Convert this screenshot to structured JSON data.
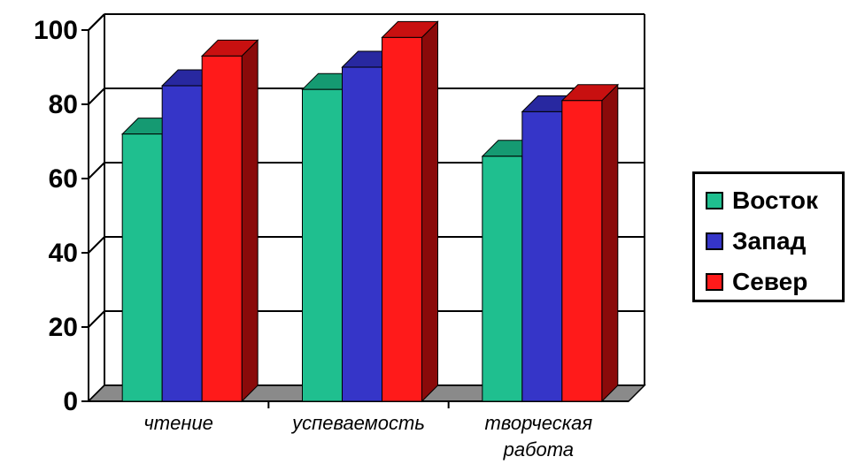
{
  "chart_data": {
    "type": "bar",
    "categories": [
      "чтение",
      "успеваемость",
      "творческая работа"
    ],
    "category_lines": [
      [
        "чтение"
      ],
      [
        "успеваемость"
      ],
      [
        "творческая",
        "работа"
      ]
    ],
    "series": [
      {
        "name": "Восток",
        "values": [
          72,
          84,
          66
        ],
        "color": "#1fbf8f",
        "side": "#0f6b50",
        "top": "#159a72"
      },
      {
        "name": "Запад",
        "values": [
          85,
          90,
          78
        ],
        "color": "#3535c8",
        "side": "#141470",
        "top": "#2828a0"
      },
      {
        "name": "Север",
        "values": [
          93,
          98,
          81
        ],
        "color": "#ff1a1a",
        "side": "#8a0a0a",
        "top": "#c81010"
      }
    ],
    "ylim": [
      0,
      100
    ],
    "yticks": [
      "0",
      "20",
      "40",
      "60",
      "80",
      "100"
    ],
    "grid": true,
    "legend_position": "right",
    "style": "3d-clustered-column"
  }
}
